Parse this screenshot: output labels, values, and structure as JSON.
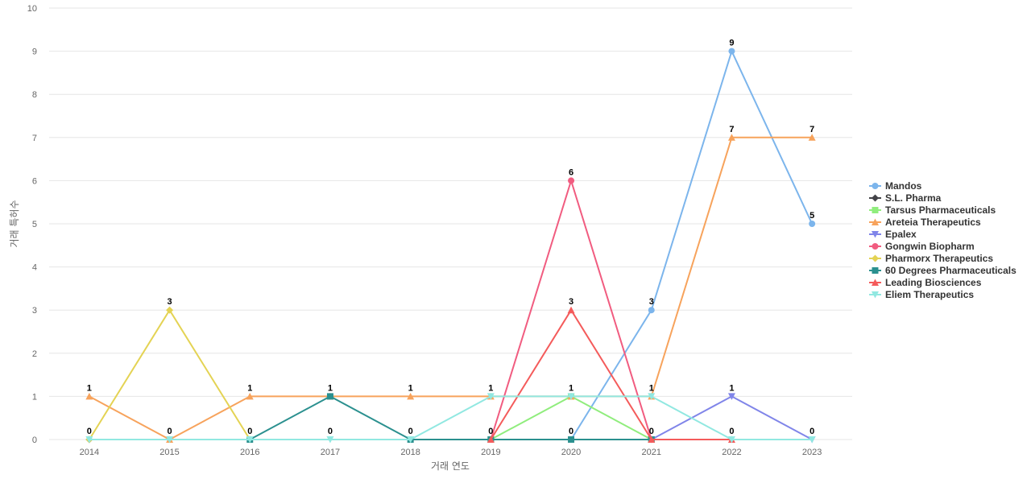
{
  "chart_data": {
    "type": "line",
    "title": "",
    "xlabel": "거래 연도",
    "ylabel": "거래 특허수",
    "x": [
      "2014",
      "2015",
      "2016",
      "2017",
      "2018",
      "2019",
      "2020",
      "2021",
      "2022",
      "2023"
    ],
    "ylim": [
      0,
      10
    ],
    "yticks": [
      0,
      1,
      2,
      3,
      4,
      5,
      6,
      7,
      8,
      9,
      10
    ],
    "grid": true,
    "legend_position": "right",
    "series": [
      {
        "name": "Mandos",
        "color": "#7cb5ec",
        "marker": "circle",
        "values": [
          null,
          null,
          null,
          null,
          null,
          null,
          0,
          3,
          9,
          5
        ]
      },
      {
        "name": "S.L. Pharma",
        "color": "#434348",
        "marker": "diamond",
        "values": [
          0,
          null,
          null,
          null,
          null,
          null,
          null,
          null,
          null,
          null
        ]
      },
      {
        "name": "Tarsus Pharmaceuticals",
        "color": "#90ed7d",
        "marker": "square",
        "values": [
          null,
          null,
          null,
          null,
          null,
          0,
          1,
          0,
          null,
          null
        ]
      },
      {
        "name": "Areteia Therapeutics",
        "color": "#f7a35c",
        "marker": "triangle",
        "values": [
          1,
          0,
          1,
          1,
          1,
          1,
          1,
          1,
          7,
          7
        ]
      },
      {
        "name": "Epalex",
        "color": "#8085e9",
        "marker": "triangle-down",
        "values": [
          null,
          null,
          null,
          null,
          null,
          null,
          null,
          0,
          1,
          0
        ]
      },
      {
        "name": "Gongwin Biopharm",
        "color": "#f15c80",
        "marker": "circle",
        "values": [
          null,
          null,
          null,
          null,
          0,
          0,
          6,
          0,
          null,
          null
        ]
      },
      {
        "name": "Pharmorx Therapeutics",
        "color": "#e4d354",
        "marker": "diamond",
        "values": [
          0,
          3,
          0,
          null,
          null,
          null,
          null,
          null,
          null,
          null
        ]
      },
      {
        "name": "60 Degrees Pharmaceuticals",
        "color": "#2b908f",
        "marker": "square",
        "values": [
          null,
          null,
          0,
          1,
          0,
          0,
          0,
          0,
          null,
          null
        ]
      },
      {
        "name": "Leading Biosciences",
        "color": "#f45b5b",
        "marker": "triangle",
        "values": [
          null,
          null,
          null,
          null,
          null,
          0,
          3,
          0,
          0,
          null
        ]
      },
      {
        "name": "Eliem Therapeutics",
        "color": "#91e8e1",
        "marker": "triangle-down",
        "values": [
          0,
          0,
          0,
          0,
          0,
          1,
          1,
          1,
          0,
          0
        ]
      }
    ],
    "data_labels": [
      {
        "x": "2014",
        "text": "1",
        "y": 1
      },
      {
        "x": "2014",
        "text": "0",
        "y": 0
      },
      {
        "x": "2015",
        "text": "3",
        "y": 3
      },
      {
        "x": "2015",
        "text": "0",
        "y": 0
      },
      {
        "x": "2016",
        "text": "1",
        "y": 1
      },
      {
        "x": "2016",
        "text": "0",
        "y": 0
      },
      {
        "x": "2017",
        "text": "1",
        "y": 1
      },
      {
        "x": "2017",
        "text": "0",
        "y": 0
      },
      {
        "x": "2018",
        "text": "1",
        "y": 1
      },
      {
        "x": "2018",
        "text": "0",
        "y": 0
      },
      {
        "x": "2019",
        "text": "1",
        "y": 1
      },
      {
        "x": "2019",
        "text": "0",
        "y": 0
      },
      {
        "x": "2020",
        "text": "6",
        "y": 6
      },
      {
        "x": "2020",
        "text": "3",
        "y": 3
      },
      {
        "x": "2020",
        "text": "1",
        "y": 1
      },
      {
        "x": "2020",
        "text": "0",
        "y": 0
      },
      {
        "x": "2021",
        "text": "3",
        "y": 3
      },
      {
        "x": "2021",
        "text": "1",
        "y": 1
      },
      {
        "x": "2021",
        "text": "0",
        "y": 0
      },
      {
        "x": "2022",
        "text": "9",
        "y": 9
      },
      {
        "x": "2022",
        "text": "7",
        "y": 7
      },
      {
        "x": "2022",
        "text": "1",
        "y": 1
      },
      {
        "x": "2022",
        "text": "0",
        "y": 0
      },
      {
        "x": "2023",
        "text": "7",
        "y": 7
      },
      {
        "x": "2023",
        "text": "5",
        "y": 5
      },
      {
        "x": "2023",
        "text": "0",
        "y": 0
      }
    ]
  }
}
